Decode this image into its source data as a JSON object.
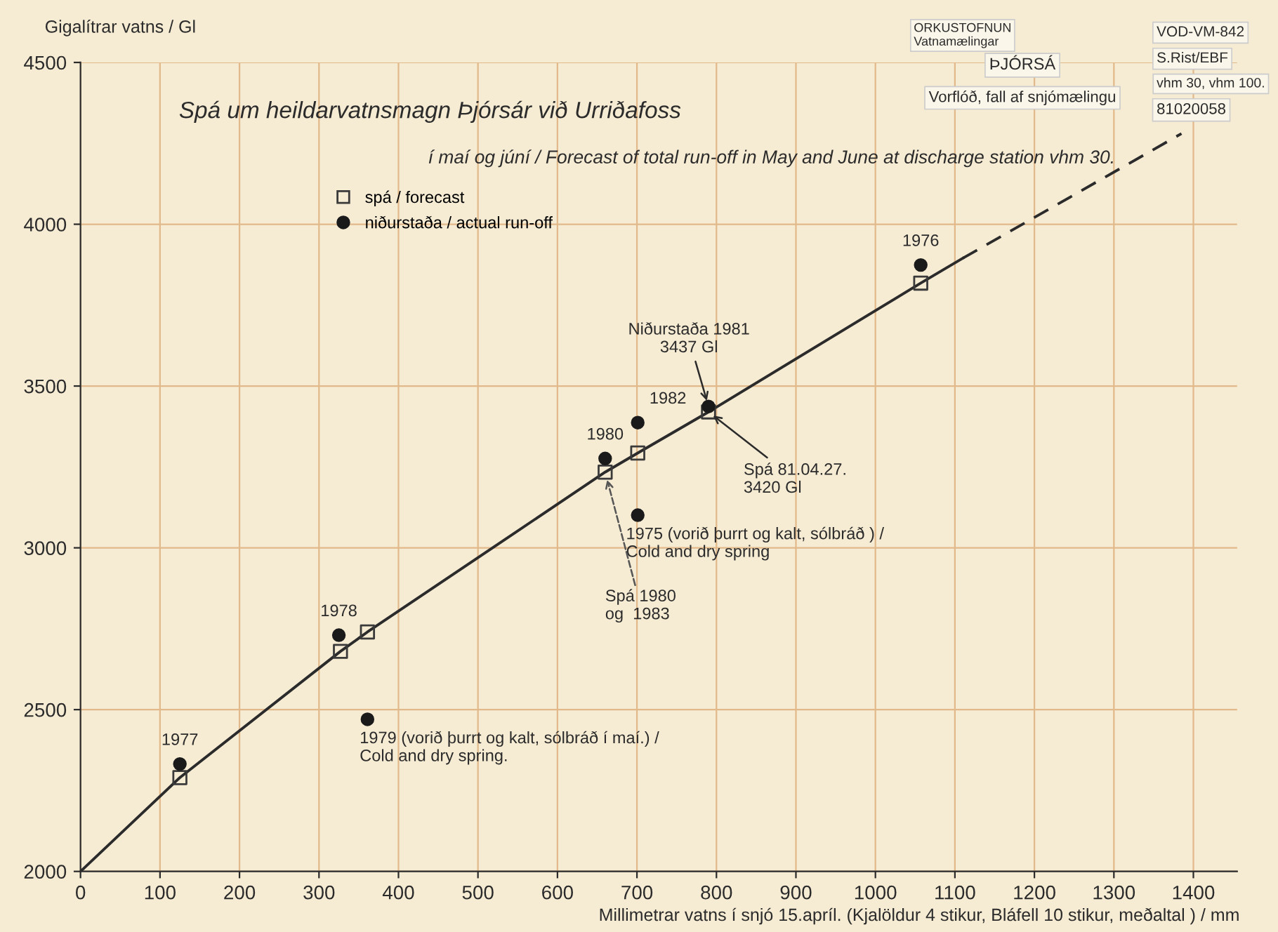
{
  "chart_data": {
    "type": "scatter",
    "title": "Spá um heildarvatnsmagn Þjórsár við Urriðafoss",
    "subtitle": "í maí og júní / Forecast of total run-off in May and June at discharge station vhm 30.",
    "xlabel": "Millimetrar vatns í snjó 15.apríl. (Kjalöldur 4 stikur, Bláfell 10 stikur, meðaltal ) / mm",
    "ylabel": "Gigalítrar vatns / Gl",
    "xlim": [
      0,
      1455
    ],
    "ylim": [
      2000,
      4500
    ],
    "xticks": [
      0,
      100,
      200,
      300,
      400,
      500,
      600,
      700,
      800,
      900,
      1000,
      1100,
      1200,
      1300,
      1400
    ],
    "yticks": [
      2000,
      2500,
      3000,
      3500,
      4000,
      4500
    ],
    "grid": true,
    "legend": "top left",
    "series": [
      {
        "type": "line",
        "color": "#2b2b2b",
        "line_style": "solid",
        "marker": "none",
        "x": [
          0,
          125,
          327,
          361,
          660,
          701,
          790,
          1057,
          1110
        ],
        "values": [
          2000,
          2290,
          2680,
          2740,
          3234,
          3293,
          3420,
          3818,
          3895
        ]
      },
      {
        "type": "line",
        "color": "#2b2b2b",
        "line_style": "dashed",
        "marker": "none",
        "x": [
          1110,
          1385
        ],
        "values": [
          3895,
          4280
        ]
      },
      {
        "name": "spá / forecast",
        "color": "#3a3a3a",
        "marker": "square",
        "x": [
          125,
          327,
          361,
          660,
          701,
          790,
          1057
        ],
        "values": [
          2290,
          2680,
          2740,
          3234,
          3293,
          3420,
          3818
        ]
      },
      {
        "name": "niðurstaða / actual run-off",
        "color": "#1a1a1a",
        "marker": "circle",
        "x": [
          125,
          325,
          361,
          660,
          701,
          701,
          790,
          1057
        ],
        "values": [
          2332,
          2730,
          2470,
          3276,
          3387,
          3101,
          3437,
          3874
        ]
      }
    ],
    "annotations": [
      {
        "text": "1977",
        "x": 125,
        "y": 2332
      },
      {
        "text": "1978",
        "x": 325,
        "y": 2730
      },
      {
        "text": "1979 (vorið þurrt og kalt, sólbráð í maí.) /\nCold and dry spring.",
        "x": 361,
        "y": 2470
      },
      {
        "text": "1980",
        "x": 660,
        "y": 3276
      },
      {
        "text": "1982",
        "x": 701,
        "y": 3387
      },
      {
        "text": "1975 (vorið þurrt og kalt, sólbráð ) /\nCold and dry spring",
        "x": 701,
        "y": 3101
      },
      {
        "text": "1976",
        "x": 1057,
        "y": 3874
      },
      {
        "text": "Niðurstaða 1981\n3437 Gl",
        "x": 790,
        "y": 3437
      },
      {
        "text": "Spá 81.04.27.\n3420 Gl",
        "x": 790,
        "y": 3420
      },
      {
        "text": "Spá 1980\nog  1983",
        "x": 660,
        "y": 3234
      },
      "ORKUSTOFNUN\nVatnamælingar",
      "ÞJÓRSÁ",
      "Vorflóð, fall af snjómælingu",
      "VOD-VM-842",
      "S.Rist/EBF",
      "vhm 30, vhm 100.",
      "81020058"
    ]
  }
}
